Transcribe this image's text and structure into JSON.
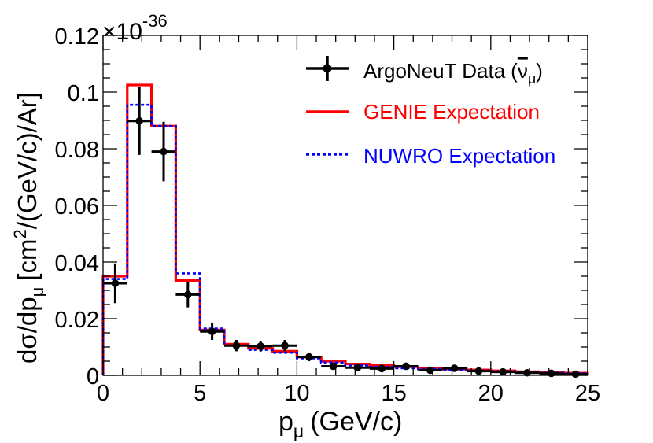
{
  "chart_data": {
    "type": "line",
    "title": "",
    "xlabel": "p",
    "xlabel_sub": "μ",
    "xlabel_unit": "(GeV/c)",
    "ylabel_parts": [
      "dσ/dp",
      "μ",
      "[cm",
      "2",
      "/(GeV/c)/Ar]"
    ],
    "y_multiplier": "×10",
    "y_multiplier_exp": "-36",
    "xlim": [
      0,
      25
    ],
    "ylim": [
      0,
      0.12
    ],
    "x_ticks": [
      0,
      5,
      10,
      15,
      20,
      25
    ],
    "x_tick_labels": [
      "0",
      "5",
      "10",
      "15",
      "20",
      "25"
    ],
    "y_ticks": [
      0,
      0.02,
      0.04,
      0.06,
      0.08,
      0.1,
      0.12
    ],
    "y_tick_labels": [
      "0",
      "0.02",
      "0.04",
      "0.06",
      "0.08",
      "0.1",
      "0.12"
    ],
    "bin_edges": [
      0,
      1.25,
      2.5,
      3.75,
      5,
      6.25,
      7.5,
      8.75,
      10,
      11.25,
      12.5,
      13.75,
      15,
      16.25,
      17.5,
      18.75,
      20,
      21.25,
      22.5,
      23.75,
      25
    ],
    "series": [
      {
        "name": "GENIE Expectation",
        "kind": "histogram",
        "color": "#ff0000",
        "values": [
          0.035,
          0.1025,
          0.088,
          0.0335,
          0.016,
          0.011,
          0.0095,
          0.0085,
          0.0065,
          0.005,
          0.004,
          0.0035,
          0.003,
          0.0025,
          0.0022,
          0.0019,
          0.0016,
          0.0013,
          0.001,
          0.0008
        ]
      },
      {
        "name": "NUWRO Expectation",
        "kind": "histogram",
        "color": "#0000ff",
        "values": [
          0.034,
          0.0955,
          0.088,
          0.036,
          0.0165,
          0.0105,
          0.009,
          0.008,
          0.006,
          0.0045,
          0.0035,
          0.003,
          0.0025,
          0.0022,
          0.0019,
          0.0017,
          0.0014,
          0.0011,
          0.0009,
          0.0007
        ]
      },
      {
        "name": "ArgoNeuT Data",
        "name_suffix_bar": "ν",
        "name_suffix_sub": "μ",
        "kind": "data_points",
        "color": "#000000",
        "x": [
          0.625,
          1.875,
          3.125,
          4.375,
          5.625,
          6.875,
          8.125,
          9.375,
          10.625,
          11.875,
          13.125,
          14.375,
          15.625,
          16.875,
          18.125,
          19.375,
          20.625,
          21.875,
          23.125,
          24.375
        ],
        "y": [
          0.0325,
          0.0898,
          0.079,
          0.0285,
          0.0155,
          0.0105,
          0.0103,
          0.0105,
          0.0065,
          0.0032,
          0.0027,
          0.0024,
          0.0032,
          0.0018,
          0.0025,
          0.0015,
          0.0012,
          0.0009,
          0.0007,
          0.0004
        ],
        "xerr": 0.625,
        "yerr": [
          0.007,
          0.012,
          0.0105,
          0.0045,
          0.003,
          0.002,
          0.0019,
          0.002,
          0.0015,
          0.001,
          0.0009,
          0.0008,
          0.0009,
          0.0006,
          0.0008,
          0.0005,
          0.0005,
          0.0004,
          0.0003,
          0.0003
        ]
      }
    ],
    "legend": {
      "placement": "top-right",
      "entries": [
        {
          "label": "ArgoNeuT Data",
          "paren_open": "(",
          "bar_char": "ν",
          "sub": "μ",
          "paren_close": ")",
          "color": "#000000",
          "style": "marker"
        },
        {
          "label": "GENIE Expectation",
          "color": "#ff0000",
          "style": "solid"
        },
        {
          "label": "NUWRO Expectation",
          "color": "#0000ff",
          "style": "dashed"
        }
      ]
    }
  }
}
